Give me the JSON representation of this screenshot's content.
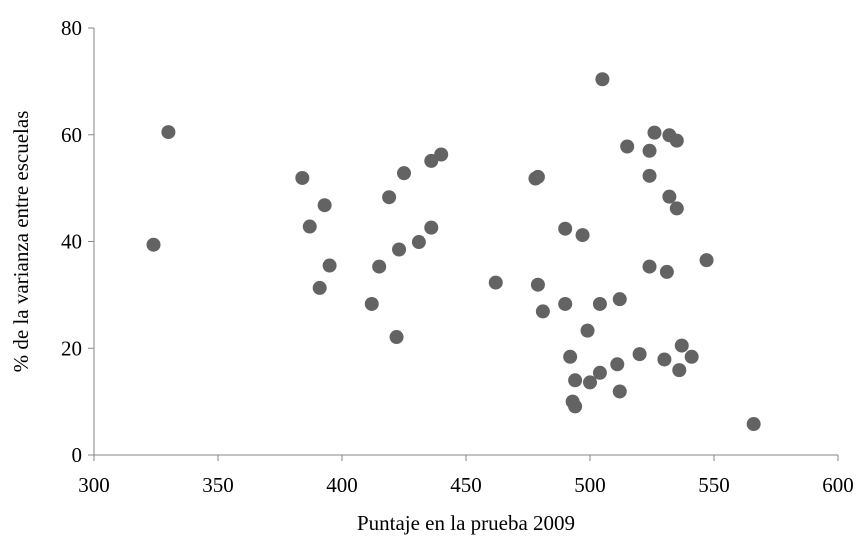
{
  "chart_data": {
    "type": "scatter",
    "xlabel": "Puntaje en la prueba 2009",
    "ylabel": "% de la varianza entre escuelas",
    "xlim": [
      300,
      600
    ],
    "ylim": [
      0,
      80
    ],
    "x_ticks": [
      300,
      350,
      400,
      450,
      500,
      550,
      600
    ],
    "y_ticks": [
      0,
      20,
      40,
      60,
      80
    ],
    "grid": false,
    "marker_color": "#636363",
    "series": [
      {
        "points": [
          [
            324,
            39.4
          ],
          [
            330,
            60.5
          ],
          [
            384,
            51.9
          ],
          [
            387,
            42.8
          ],
          [
            391,
            31.3
          ],
          [
            393,
            46.8
          ],
          [
            395,
            35.5
          ],
          [
            412,
            28.3
          ],
          [
            415,
            35.3
          ],
          [
            419,
            48.3
          ],
          [
            422,
            22.1
          ],
          [
            423,
            38.5
          ],
          [
            425,
            52.8
          ],
          [
            431,
            39.9
          ],
          [
            436,
            55.1
          ],
          [
            436,
            42.6
          ],
          [
            440,
            56.3
          ],
          [
            462,
            32.3
          ],
          [
            478,
            51.8
          ],
          [
            479,
            31.9
          ],
          [
            479,
            52.1
          ],
          [
            481,
            26.9
          ],
          [
            490,
            42.4
          ],
          [
            490,
            28.3
          ],
          [
            492,
            18.4
          ],
          [
            493,
            10.0
          ],
          [
            494,
            14.0
          ],
          [
            494,
            9.1
          ],
          [
            497,
            41.2
          ],
          [
            499,
            23.3
          ],
          [
            500,
            13.6
          ],
          [
            504,
            15.4
          ],
          [
            504,
            28.3
          ],
          [
            505,
            70.4
          ],
          [
            511,
            17.0
          ],
          [
            512,
            29.2
          ],
          [
            512,
            11.9
          ],
          [
            515,
            57.8
          ],
          [
            520,
            18.9
          ],
          [
            524,
            57.0
          ],
          [
            524,
            52.3
          ],
          [
            524,
            35.3
          ],
          [
            526,
            60.4
          ],
          [
            530,
            17.9
          ],
          [
            531,
            34.3
          ],
          [
            532,
            59.9
          ],
          [
            532,
            48.4
          ],
          [
            535,
            58.9
          ],
          [
            535,
            46.2
          ],
          [
            536,
            15.9
          ],
          [
            537,
            20.5
          ],
          [
            541,
            18.4
          ],
          [
            547,
            36.5
          ],
          [
            566,
            5.8
          ]
        ]
      }
    ]
  }
}
